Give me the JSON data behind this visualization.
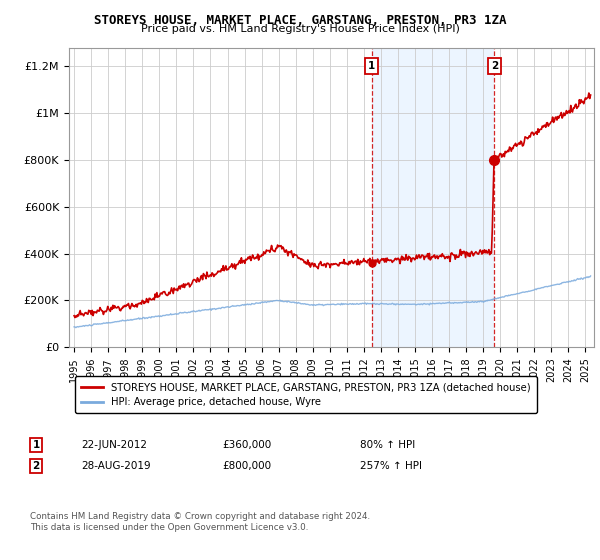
{
  "title": "STOREYS HOUSE, MARKET PLACE, GARSTANG, PRESTON, PR3 1ZA",
  "subtitle": "Price paid vs. HM Land Registry's House Price Index (HPI)",
  "ylabel_ticks": [
    "£0",
    "£200K",
    "£400K",
    "£600K",
    "£800K",
    "£1M",
    "£1.2M"
  ],
  "ytick_vals": [
    0,
    200000,
    400000,
    600000,
    800000,
    1000000,
    1200000
  ],
  "ylim": [
    0,
    1280000
  ],
  "xlim_start": 1994.7,
  "xlim_end": 2025.5,
  "sale1": {
    "date_num": 2012.47,
    "price": 360000,
    "label": "1"
  },
  "sale2": {
    "date_num": 2019.65,
    "price": 800000,
    "label": "2"
  },
  "legend_line1": "STOREYS HOUSE, MARKET PLACE, GARSTANG, PRESTON, PR3 1ZA (detached house)",
  "legend_line2": "HPI: Average price, detached house, Wyre",
  "ann1_date": "22-JUN-2012",
  "ann1_price": "£360,000",
  "ann1_hpi": "80% ↑ HPI",
  "ann2_date": "28-AUG-2019",
  "ann2_price": "£800,000",
  "ann2_hpi": "257% ↑ HPI",
  "footer": "Contains HM Land Registry data © Crown copyright and database right 2024.\nThis data is licensed under the Open Government Licence v3.0.",
  "red_color": "#cc0000",
  "blue_color": "#7aaadd",
  "shade_color": "#ddeeff",
  "grid_color": "#cccccc",
  "label_box_color": "#cc0000"
}
